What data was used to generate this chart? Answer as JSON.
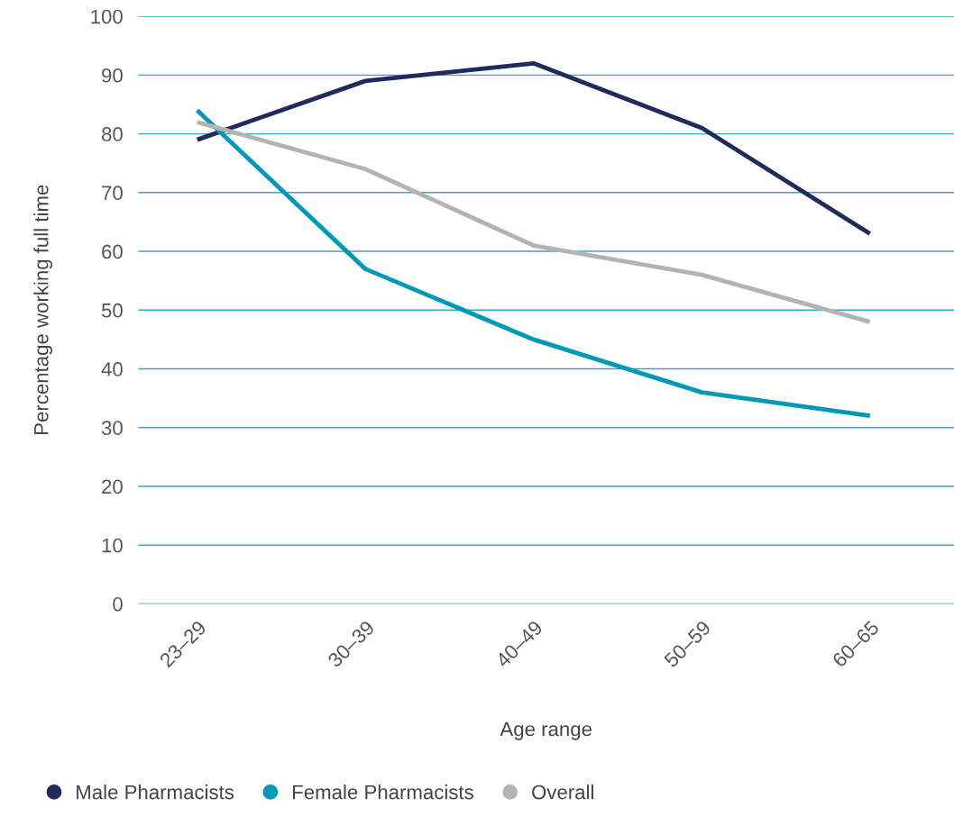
{
  "chart_data": {
    "type": "line",
    "xlabel": "Age range",
    "ylabel": "Percentage working full time",
    "categories": [
      "23–29",
      "30–39",
      "40–49",
      "50–59",
      "60–65"
    ],
    "series": [
      {
        "name": "Male Pharmacists",
        "color": "#1f2b5c",
        "values": [
          79,
          89,
          92,
          81,
          63
        ]
      },
      {
        "name": "Female Pharmacists",
        "color": "#0099b5",
        "values": [
          84,
          57,
          45,
          36,
          32
        ]
      },
      {
        "name": "Overall",
        "color": "#b3b3b3",
        "values": [
          82,
          74,
          61,
          56,
          48
        ]
      }
    ],
    "ylim": [
      0,
      100
    ],
    "yticks": [
      0,
      10,
      20,
      30,
      40,
      50,
      60,
      70,
      80,
      90,
      100
    ],
    "grid": "y",
    "legend": "bottom",
    "marker": "none",
    "line_style": "solid"
  }
}
